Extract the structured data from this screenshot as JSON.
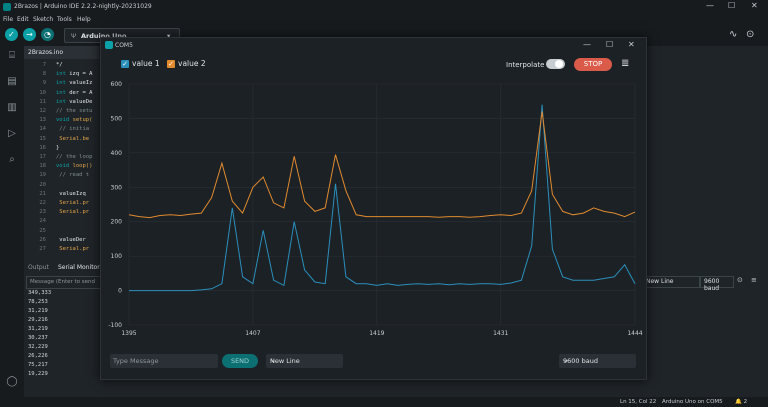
{
  "titlebar": {
    "title": "2Brazos | Arduino IDE 2.2.2-nightly-20231029",
    "min": "—",
    "max": "☐",
    "close": "✕"
  },
  "menu": [
    "File",
    "Edit",
    "Sketch",
    "Tools",
    "Help"
  ],
  "toolbar": {
    "verify_icon": "check-icon",
    "upload_icon": "arrow-right-icon",
    "debug_icon": "debug-icon",
    "board": "Arduino Uno",
    "board_chevron": "▾",
    "usb_icon": "Ψ",
    "plotter_icon": "∿",
    "monitor_icon": "⊙"
  },
  "file_tab": "2Brazos.ino",
  "sidebar_icons": [
    "⌸",
    "▤",
    "▥",
    "▷",
    "⌕",
    "◯"
  ],
  "code_lines": [
    {
      "n": "7",
      "parts": [
        [
          "tx",
          "*/"
        ]
      ]
    },
    {
      "n": "8",
      "parts": [
        [
          "kw",
          "int "
        ],
        [
          "tx",
          "izq = A"
        ]
      ]
    },
    {
      "n": "9",
      "parts": [
        [
          "kw",
          "int "
        ],
        [
          "tx",
          "valueIz"
        ]
      ]
    },
    {
      "n": "10",
      "parts": [
        [
          "kw",
          "int "
        ],
        [
          "tx",
          "der = A"
        ]
      ]
    },
    {
      "n": "11",
      "parts": [
        [
          "kw",
          "int "
        ],
        [
          "tx",
          "valueDe"
        ]
      ]
    },
    {
      "n": "12",
      "parts": [
        [
          "cm",
          "// the setu"
        ]
      ]
    },
    {
      "n": "13",
      "parts": [
        [
          "kw",
          "void "
        ],
        [
          "fn",
          "setup("
        ]
      ]
    },
    {
      "n": "14",
      "parts": [
        [
          "cm",
          "  // initia"
        ]
      ]
    },
    {
      "n": "15",
      "parts": [
        [
          "fn",
          "  Serial.be"
        ]
      ]
    },
    {
      "n": "16",
      "parts": [
        [
          "tx",
          "}"
        ]
      ]
    },
    {
      "n": "17",
      "parts": [
        [
          "cm",
          "// the loop"
        ]
      ]
    },
    {
      "n": "18",
      "parts": [
        [
          "kw",
          "void "
        ],
        [
          "fn",
          "loop()"
        ]
      ]
    },
    {
      "n": "19",
      "parts": [
        [
          "cm",
          "  // read t"
        ]
      ]
    },
    {
      "n": "20",
      "parts": [
        [
          "tx",
          ""
        ]
      ]
    },
    {
      "n": "21",
      "parts": [
        [
          "tx",
          "  valueIzq"
        ]
      ]
    },
    {
      "n": "22",
      "parts": [
        [
          "fn",
          "  Serial.pr"
        ]
      ]
    },
    {
      "n": "23",
      "parts": [
        [
          "fn",
          "  Serial.pr"
        ]
      ]
    },
    {
      "n": "24",
      "parts": [
        [
          "tx",
          ""
        ]
      ]
    },
    {
      "n": "25",
      "parts": [
        [
          "tx",
          ""
        ]
      ]
    },
    {
      "n": "26",
      "parts": [
        [
          "tx",
          "  valueDer"
        ]
      ]
    },
    {
      "n": "27",
      "parts": [
        [
          "fn",
          "  Serial.pr"
        ]
      ]
    }
  ],
  "bottom_tabs": {
    "output": "Output",
    "serial_monitor": "Serial Monitor"
  },
  "serial": {
    "placeholder": "Message (Enter to send",
    "lines": [
      "349,333",
      "78,253",
      "31,219",
      "29,216",
      "31,219",
      "30,237",
      "32,229",
      "26,226",
      "75,217",
      "19,229"
    ],
    "line_ending": "New Line",
    "baud": "9600 baud"
  },
  "status": {
    "pos": "Ln 15, Col 22",
    "board": "Arduino Uno on COM5",
    "notif": "🔔 2"
  },
  "plotter": {
    "title": "COM5",
    "series_labels": [
      "value 1",
      "value 2"
    ],
    "interpolate_label": "Interpolate",
    "stop_label": "STOP",
    "clear_icon": "clear-icon",
    "message_placeholder": "Type Message",
    "send_label": "SEND",
    "line_ending": "New Line",
    "baud": "9600 baud",
    "colors": {
      "value1": "#2b8fbb",
      "value2": "#e08a2e",
      "stop": "#da5b4a"
    }
  },
  "chart_data": {
    "type": "line",
    "x_ticks": [
      "1395",
      "1407",
      "1419",
      "1431",
      "1444"
    ],
    "y_ticks": [
      "-100",
      "0",
      "100",
      "200",
      "300",
      "400",
      "500",
      "600"
    ],
    "xlim": [
      1395,
      1444
    ],
    "ylim": [
      -100,
      600
    ],
    "grid": true,
    "legend": "top-left",
    "series": [
      {
        "name": "value 1",
        "color": "#2b8fbb",
        "points": [
          [
            1395,
            0
          ],
          [
            1397,
            0
          ],
          [
            1399,
            0
          ],
          [
            1401,
            0
          ],
          [
            1402,
            2
          ],
          [
            1403,
            5
          ],
          [
            1404,
            20
          ],
          [
            1405,
            240
          ],
          [
            1406,
            40
          ],
          [
            1407,
            20
          ],
          [
            1408,
            175
          ],
          [
            1409,
            30
          ],
          [
            1410,
            15
          ],
          [
            1411,
            200
          ],
          [
            1412,
            60
          ],
          [
            1413,
            25
          ],
          [
            1414,
            20
          ],
          [
            1415,
            310
          ],
          [
            1416,
            40
          ],
          [
            1417,
            20
          ],
          [
            1418,
            20
          ],
          [
            1419,
            15
          ],
          [
            1420,
            20
          ],
          [
            1421,
            15
          ],
          [
            1422,
            18
          ],
          [
            1423,
            20
          ],
          [
            1424,
            18
          ],
          [
            1425,
            20
          ],
          [
            1426,
            17
          ],
          [
            1427,
            20
          ],
          [
            1428,
            18
          ],
          [
            1429,
            20
          ],
          [
            1430,
            20
          ],
          [
            1431,
            18
          ],
          [
            1432,
            22
          ],
          [
            1433,
            30
          ],
          [
            1434,
            130
          ],
          [
            1435,
            540
          ],
          [
            1436,
            120
          ],
          [
            1437,
            40
          ],
          [
            1438,
            30
          ],
          [
            1439,
            30
          ],
          [
            1440,
            30
          ],
          [
            1441,
            35
          ],
          [
            1442,
            40
          ],
          [
            1443,
            75
          ],
          [
            1444,
            20
          ]
        ]
      },
      {
        "name": "value 2",
        "color": "#e08a2e",
        "points": [
          [
            1395,
            220
          ],
          [
            1396,
            215
          ],
          [
            1397,
            212
          ],
          [
            1398,
            218
          ],
          [
            1399,
            220
          ],
          [
            1400,
            218
          ],
          [
            1401,
            222
          ],
          [
            1402,
            225
          ],
          [
            1403,
            270
          ],
          [
            1404,
            370
          ],
          [
            1405,
            260
          ],
          [
            1406,
            225
          ],
          [
            1407,
            300
          ],
          [
            1408,
            330
          ],
          [
            1409,
            255
          ],
          [
            1410,
            240
          ],
          [
            1411,
            390
          ],
          [
            1412,
            260
          ],
          [
            1413,
            230
          ],
          [
            1414,
            240
          ],
          [
            1415,
            395
          ],
          [
            1416,
            290
          ],
          [
            1417,
            220
          ],
          [
            1418,
            215
          ],
          [
            1419,
            215
          ],
          [
            1420,
            215
          ],
          [
            1421,
            215
          ],
          [
            1422,
            215
          ],
          [
            1423,
            215
          ],
          [
            1424,
            215
          ],
          [
            1425,
            213
          ],
          [
            1426,
            215
          ],
          [
            1427,
            215
          ],
          [
            1428,
            213
          ],
          [
            1429,
            215
          ],
          [
            1430,
            218
          ],
          [
            1431,
            220
          ],
          [
            1432,
            218
          ],
          [
            1433,
            225
          ],
          [
            1434,
            290
          ],
          [
            1435,
            520
          ],
          [
            1436,
            280
          ],
          [
            1437,
            230
          ],
          [
            1438,
            220
          ],
          [
            1439,
            225
          ],
          [
            1440,
            240
          ],
          [
            1441,
            230
          ],
          [
            1442,
            225
          ],
          [
            1443,
            215
          ],
          [
            1444,
            228
          ]
        ]
      }
    ]
  }
}
